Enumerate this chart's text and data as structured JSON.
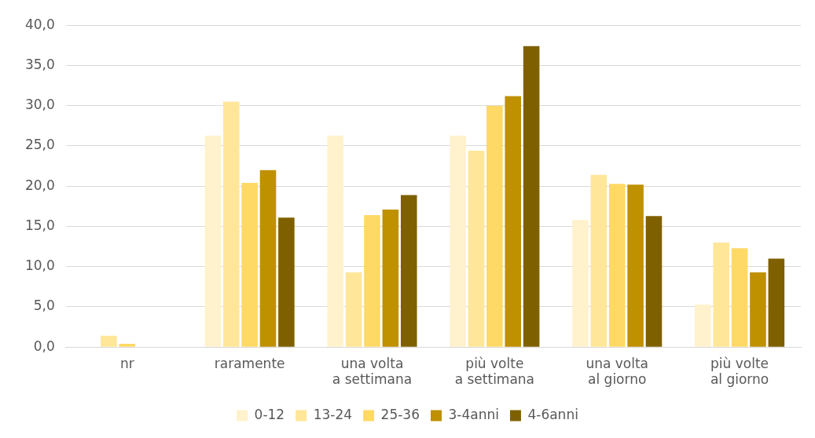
{
  "chart_data": {
    "type": "bar",
    "categories": [
      "nr",
      "raramente",
      "una volta a settimana",
      "più volte a settimana",
      "una volta al giorno",
      "più volte al giorno"
    ],
    "series": [
      {
        "name": "0-12",
        "color": "#fff2cc",
        "values": [
          0,
          26.3,
          26.3,
          26.3,
          15.8,
          5.3
        ]
      },
      {
        "name": "13-24",
        "color": "#ffe699",
        "values": [
          1.4,
          30.5,
          9.3,
          24.4,
          21.4,
          13.0
        ]
      },
      {
        "name": "25-36",
        "color": "#ffd966",
        "values": [
          0.4,
          20.4,
          16.4,
          30.0,
          20.3,
          12.3
        ]
      },
      {
        "name": "3-4anni",
        "color": "#bf9000",
        "values": [
          0,
          22.0,
          17.1,
          31.2,
          20.2,
          9.3
        ]
      },
      {
        "name": "4-6anni",
        "color": "#7f6000",
        "values": [
          0,
          16.1,
          18.9,
          37.4,
          16.3,
          11.0
        ]
      }
    ],
    "ylim": [
      0,
      40
    ],
    "yticks": [
      {
        "value": 0,
        "label": "0,0"
      },
      {
        "value": 5,
        "label": "5,0"
      },
      {
        "value": 10,
        "label": "10,0"
      },
      {
        "value": 15,
        "label": "15,0"
      },
      {
        "value": 20,
        "label": "20,0"
      },
      {
        "value": 25,
        "label": "25,0"
      },
      {
        "value": 30,
        "label": "30,0"
      },
      {
        "value": 35,
        "label": "35,0"
      },
      {
        "value": 40,
        "label": "40,0"
      }
    ],
    "grid": "y",
    "legend": "bottom"
  }
}
